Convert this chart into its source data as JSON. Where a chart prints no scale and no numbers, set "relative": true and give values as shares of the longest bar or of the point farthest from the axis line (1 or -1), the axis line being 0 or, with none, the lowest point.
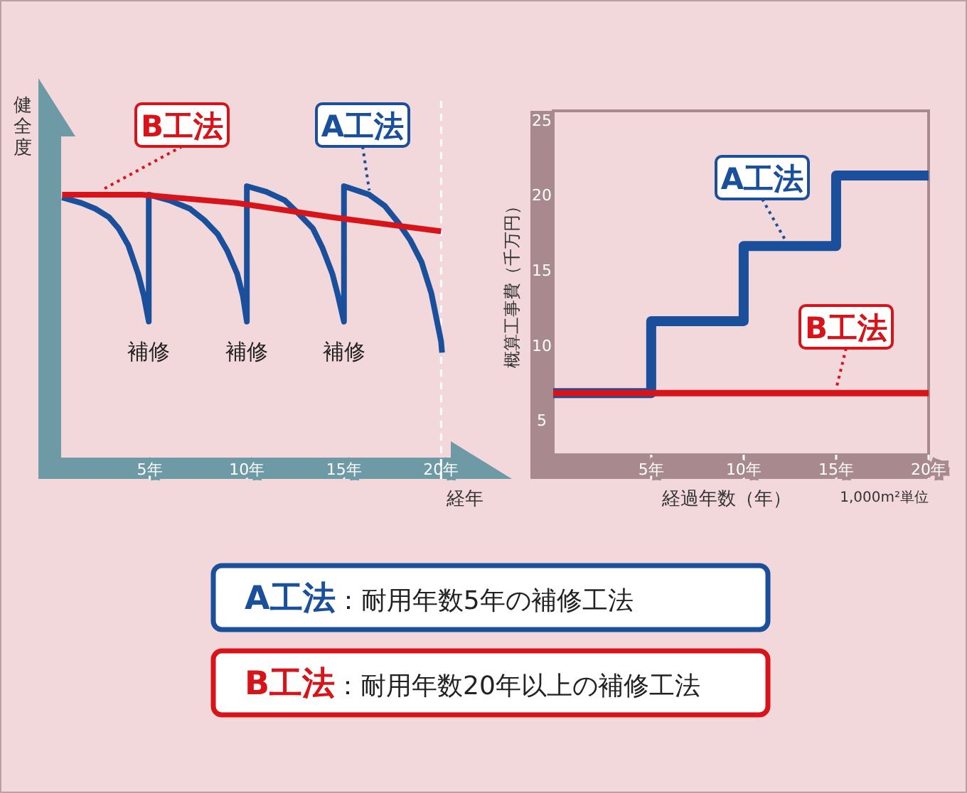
{
  "chart_data": [
    {
      "type": "line",
      "relative": true,
      "ylabel": "健全度",
      "xlabel": "経年",
      "xlim": [
        0,
        20.5
      ],
      "xticks": [
        {
          "value": 5,
          "label": "5年"
        },
        {
          "value": 10,
          "label": "10年"
        },
        {
          "value": 15,
          "label": "15年"
        },
        {
          "value": 20,
          "label": "20年"
        }
      ],
      "tick_labels": "x",
      "grid": false,
      "legend": false,
      "marker": "none",
      "line_style": "solid",
      "series": [
        {
          "name": "A工法",
          "color": "#1a4f9c",
          "x": [
            0.49,
            1.5,
            2.2,
            2.9,
            3.4,
            3.9,
            4.4,
            4.7,
            4.95,
            4.95,
            6.0,
            7.07,
            7.8,
            8.5,
            9.0,
            9.5,
            9.8,
            10.0,
            10.0,
            11.0,
            11.95,
            12.7,
            13.4,
            13.9,
            14.4,
            14.7,
            15.0,
            15.0,
            16.3,
            17.1,
            17.8,
            18.4,
            19.0,
            19.5,
            20.0,
            20.05
          ],
          "values": [
            0.96,
            0.94,
            0.92,
            0.89,
            0.85,
            0.79,
            0.69,
            0.61,
            0.52,
            0.97,
            0.95,
            0.92,
            0.88,
            0.83,
            0.77,
            0.69,
            0.61,
            0.52,
            1.0,
            0.98,
            0.95,
            0.9,
            0.85,
            0.78,
            0.69,
            0.61,
            0.52,
            1.0,
            0.97,
            0.93,
            0.87,
            0.81,
            0.73,
            0.62,
            0.45,
            0.41
          ]
        },
        {
          "name": "B工法",
          "color": "#d7141a",
          "x": [
            0.49,
            4.6,
            9.5,
            14.4,
            20.0
          ],
          "values": [
            0.97,
            0.97,
            0.94,
            0.89,
            0.84
          ]
        }
      ],
      "annotations": [
        {
          "text": "補修",
          "x": 4.95,
          "y": 0.52
        },
        {
          "text": "補修",
          "x": 10.0,
          "y": 0.52
        },
        {
          "text": "補修",
          "x": 15.0,
          "y": 0.52
        }
      ],
      "ref_lines": [
        {
          "axis": "x",
          "value": 20,
          "color": "#ffffff",
          "line_style": "dashed"
        }
      ]
    },
    {
      "type": "step",
      "ylabel": "概算工事費（千万円）",
      "xlabel": "経過年数（年）",
      "xlim": [
        -0.3,
        20
      ],
      "ylim": [
        2.7,
        25.6
      ],
      "xticks": [
        {
          "value": 5,
          "label": "5年"
        },
        {
          "value": 10,
          "label": "10年"
        },
        {
          "value": 15,
          "label": "15年"
        },
        {
          "value": 20,
          "label": "20年"
        }
      ],
      "yticks": [
        5,
        10,
        15,
        20,
        25
      ],
      "grid": false,
      "legend": false,
      "marker": "none",
      "line_style": "solid",
      "series": [
        {
          "name": "A工法",
          "color": "#1a4f9c",
          "x": [
            -0.3,
            5,
            10,
            15,
            20
          ],
          "values": [
            6.8,
            11.6,
            16.6,
            21.3,
            21.3
          ]
        },
        {
          "name": "B工法",
          "color": "#d7141a",
          "x": [
            -0.3,
            20
          ],
          "values": [
            6.8,
            6.8
          ]
        }
      ],
      "annotations": [
        "1,000m²単位"
      ]
    },
    {
      "type": "other",
      "annotations": [
        "A工法：耐用年数5年の補修工法",
        "B工法：耐用年数20年以上の補修工法"
      ],
      "colors": [
        "#1a4f9c",
        "#d7141a"
      ]
    }
  ]
}
